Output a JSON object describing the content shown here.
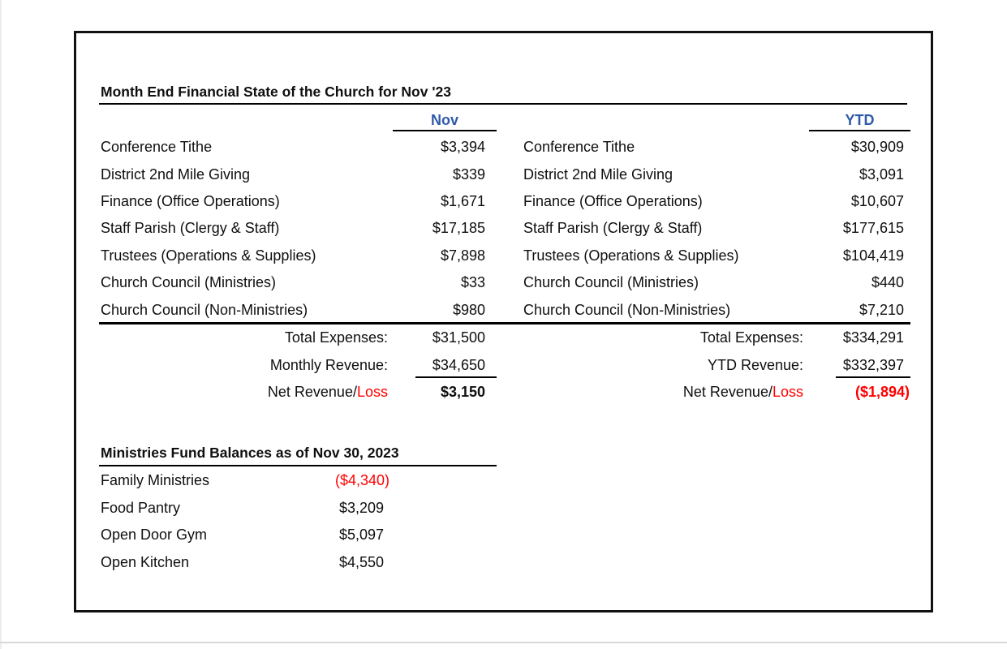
{
  "report": {
    "title": "Month End Financial State of the Church for Nov '23",
    "colors": {
      "header_blue": "#2F5BA9",
      "loss_red": "#FF0000"
    },
    "monthly": {
      "header": "Nov",
      "rows": [
        {
          "label": "Conference Tithe",
          "value": "$3,394"
        },
        {
          "label": "District 2nd Mile Giving",
          "value": "$339"
        },
        {
          "label": "Finance (Office Operations)",
          "value": "$1,671"
        },
        {
          "label": "Staff Parish (Clergy & Staff)",
          "value": "$17,185"
        },
        {
          "label": "Trustees (Operations & Supplies)",
          "value": "$7,898"
        },
        {
          "label": "Church Council (Ministries)",
          "value": "$33"
        },
        {
          "label": "Church Council (Non-Ministries)",
          "value": "$980"
        }
      ],
      "total_expenses_label": "Total Expenses:",
      "total_expenses_value": "$31,500",
      "revenue_label": "Monthly Revenue:",
      "revenue_value": "$34,650",
      "net_label_plain": "Net Revenue/",
      "net_label_loss": "Loss",
      "net_value": "$3,150"
    },
    "ytd": {
      "header": "YTD",
      "rows": [
        {
          "label": "Conference Tithe",
          "value": "$30,909"
        },
        {
          "label": "District 2nd Mile Giving",
          "value": "$3,091"
        },
        {
          "label": "Finance (Office Operations)",
          "value": "$10,607"
        },
        {
          "label": "Staff Parish (Clergy & Staff)",
          "value": "$177,615"
        },
        {
          "label": "Trustees (Operations & Supplies)",
          "value": "$104,419"
        },
        {
          "label": "Church Council (Ministries)",
          "value": "$440"
        },
        {
          "label": "Church Council (Non-Ministries)",
          "value": "$7,210"
        }
      ],
      "total_expenses_label": "Total Expenses:",
      "total_expenses_value": "$334,291",
      "revenue_label": "YTD Revenue:",
      "revenue_value": "$332,397",
      "net_label_plain": "Net Revenue/",
      "net_label_loss": "Loss",
      "net_value": "($1,894)"
    },
    "ministries": {
      "title": "Ministries Fund Balances as of Nov 30, 2023",
      "rows": [
        {
          "label": "Family Ministries",
          "value": "($4,340)"
        },
        {
          "label": "Food Pantry",
          "value": "$3,209"
        },
        {
          "label": "Open Door Gym",
          "value": "$5,097"
        },
        {
          "label": "Open Kitchen",
          "value": "$4,550"
        }
      ]
    }
  }
}
